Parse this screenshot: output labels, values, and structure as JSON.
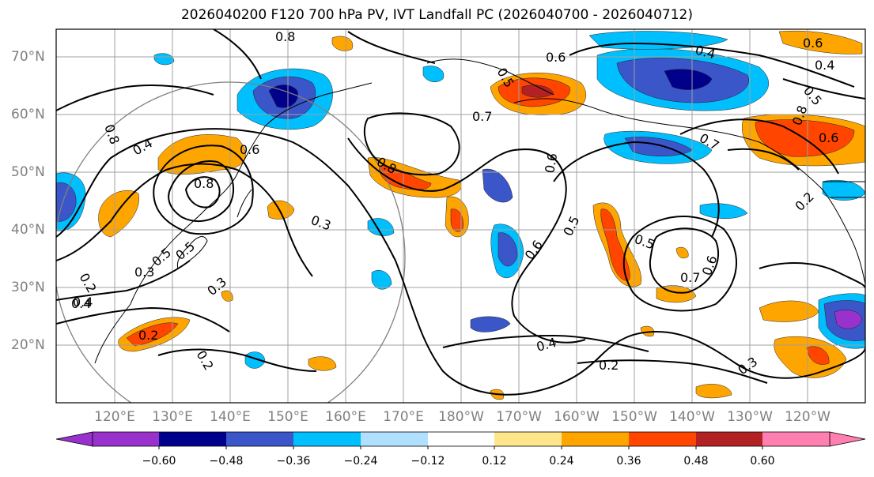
{
  "title": "2026040200 F120 700 hPa PV, IVT Landfall PC (2026040700 - 2026040712)",
  "lat_labels": [
    "70°N",
    "60°N",
    "50°N",
    "40°N",
    "30°N",
    "20°N"
  ],
  "lon_labels": [
    "120°E",
    "130°E",
    "140°E",
    "150°E",
    "160°E",
    "170°E",
    "180°W",
    "170°W",
    "160°W",
    "150°W",
    "140°W",
    "130°W",
    "120°W"
  ],
  "colorbar": {
    "colors": [
      "#9932cc",
      "#00008b",
      "#3a56c8",
      "#00bfff",
      "#b0e0ff",
      "#ffffff",
      "#ffe68a",
      "#ffa500",
      "#ff4500",
      "#b22222",
      "#ff80b0"
    ],
    "ticks": [
      "−0.60",
      "−0.48",
      "−0.36",
      "−0.24",
      "−0.12",
      "0.12",
      "0.24",
      "0.36",
      "0.48",
      "0.60"
    ]
  },
  "contour_labels": [
    "0.8",
    "0.4",
    "0.8",
    "0.6",
    "0.8",
    "0.3",
    "0.8",
    "0.2",
    "0.3",
    "0.4",
    "0.2",
    "0.2",
    "0.6",
    "0.5",
    "0.6",
    "0.4",
    "0.7",
    "0.6",
    "0.5",
    "0.6",
    "0.5",
    "0.7",
    "0.8",
    "0.4",
    "0.2",
    "0.3",
    "0.7",
    "0.6",
    "0.4",
    "0.5",
    "0.6",
    "0.2",
    "0.5",
    "0.4",
    "0.3",
    "0.5"
  ]
}
